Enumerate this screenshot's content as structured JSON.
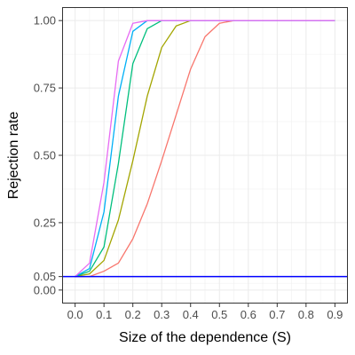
{
  "chart_data": {
    "type": "line",
    "xlabel": "Size of the dependence (S)",
    "ylabel": "Rejection rate",
    "xlim": [
      -0.045,
      0.945
    ],
    "ylim": [
      -0.05,
      1.05
    ],
    "x_ticks": [
      0.0,
      0.1,
      0.2,
      0.3,
      0.4,
      0.5,
      0.6,
      0.7,
      0.8,
      0.9
    ],
    "x_tick_labels": [
      "0.0",
      "0.1",
      "0.2",
      "0.3",
      "0.4",
      "0.5",
      "0.6",
      "0.7",
      "0.8",
      "0.9"
    ],
    "y_ticks": [
      0.0,
      0.05,
      0.25,
      0.5,
      0.75,
      1.0
    ],
    "y_tick_labels": [
      "0.00",
      "0.05",
      "0.25",
      "0.50",
      "0.75",
      "1.00"
    ],
    "grid": true,
    "x": [
      0.0,
      0.05,
      0.1,
      0.15,
      0.2,
      0.25,
      0.3,
      0.35,
      0.4,
      0.45,
      0.5,
      0.55,
      0.6,
      0.65,
      0.7,
      0.75,
      0.8,
      0.85,
      0.9
    ],
    "series": [
      {
        "color": "#F8766D",
        "values": [
          0.05,
          0.05,
          0.07,
          0.1,
          0.19,
          0.32,
          0.48,
          0.65,
          0.82,
          0.94,
          0.99,
          1.0,
          1.0,
          1.0,
          1.0,
          1.0,
          1.0,
          1.0,
          1.0
        ]
      },
      {
        "color": "#A3A500",
        "values": [
          0.05,
          0.06,
          0.11,
          0.26,
          0.48,
          0.72,
          0.9,
          0.98,
          1.0,
          1.0,
          1.0,
          1.0,
          1.0,
          1.0,
          1.0,
          1.0,
          1.0,
          1.0,
          1.0
        ]
      },
      {
        "color": "#00BF7D",
        "values": [
          0.05,
          0.07,
          0.16,
          0.47,
          0.84,
          0.97,
          1.0,
          1.0,
          1.0,
          1.0,
          1.0,
          1.0,
          1.0,
          1.0,
          1.0,
          1.0,
          1.0,
          1.0,
          1.0
        ]
      },
      {
        "color": "#00B0F6",
        "values": [
          0.05,
          0.08,
          0.29,
          0.72,
          0.96,
          1.0,
          1.0,
          1.0,
          1.0,
          1.0,
          1.0,
          1.0,
          1.0,
          1.0,
          1.0,
          1.0,
          1.0,
          1.0,
          1.0
        ]
      },
      {
        "color": "#E76BF3",
        "values": [
          0.05,
          0.1,
          0.4,
          0.85,
          0.99,
          1.0,
          1.0,
          1.0,
          1.0,
          1.0,
          1.0,
          1.0,
          1.0,
          1.0,
          1.0,
          1.0,
          1.0,
          1.0,
          1.0
        ]
      }
    ],
    "reference_line": {
      "y": 0.05,
      "color": "#0000FF"
    }
  }
}
